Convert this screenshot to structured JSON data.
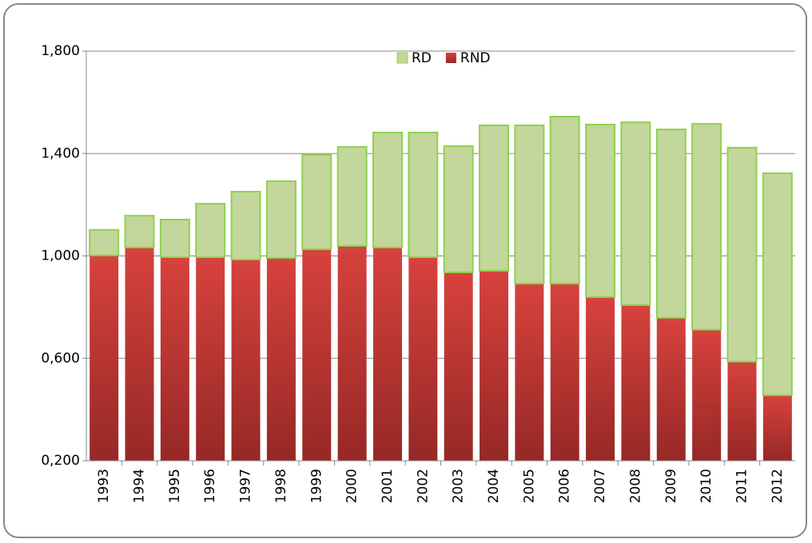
{
  "chart_data": {
    "type": "stacked_bar",
    "categories": [
      "1993",
      "1994",
      "1995",
      "1996",
      "1997",
      "1998",
      "1999",
      "2000",
      "2001",
      "2002",
      "2003",
      "2004",
      "2005",
      "2006",
      "2007",
      "2008",
      "2009",
      "2010",
      "2011",
      "2012"
    ],
    "series": [
      {
        "name": "RND",
        "color": "#c0392f",
        "values": [
          1.002,
          1.033,
          0.995,
          0.995,
          0.986,
          0.992,
          1.026,
          1.039,
          1.033,
          0.995,
          0.936,
          0.942,
          0.892,
          0.892,
          0.839,
          0.808,
          0.758,
          0.712,
          0.587,
          0.456
        ]
      },
      {
        "name": "RD",
        "color": "#c3d69b",
        "values": [
          0.1,
          0.124,
          0.147,
          0.209,
          0.265,
          0.3,
          0.369,
          0.387,
          0.449,
          0.487,
          0.493,
          0.568,
          0.618,
          0.652,
          0.674,
          0.714,
          0.736,
          0.804,
          0.836,
          0.867
        ]
      }
    ],
    "ylim": [
      0.2,
      1.8
    ],
    "yticks": [
      {
        "value": 0.2,
        "label": "0,200"
      },
      {
        "value": 0.6,
        "label": "0,600"
      },
      {
        "value": 1.0,
        "label": "1,000"
      },
      {
        "value": 1.4,
        "label": "1,400"
      },
      {
        "value": 1.8,
        "label": "1,800"
      }
    ],
    "grid": true,
    "legend": "top"
  }
}
